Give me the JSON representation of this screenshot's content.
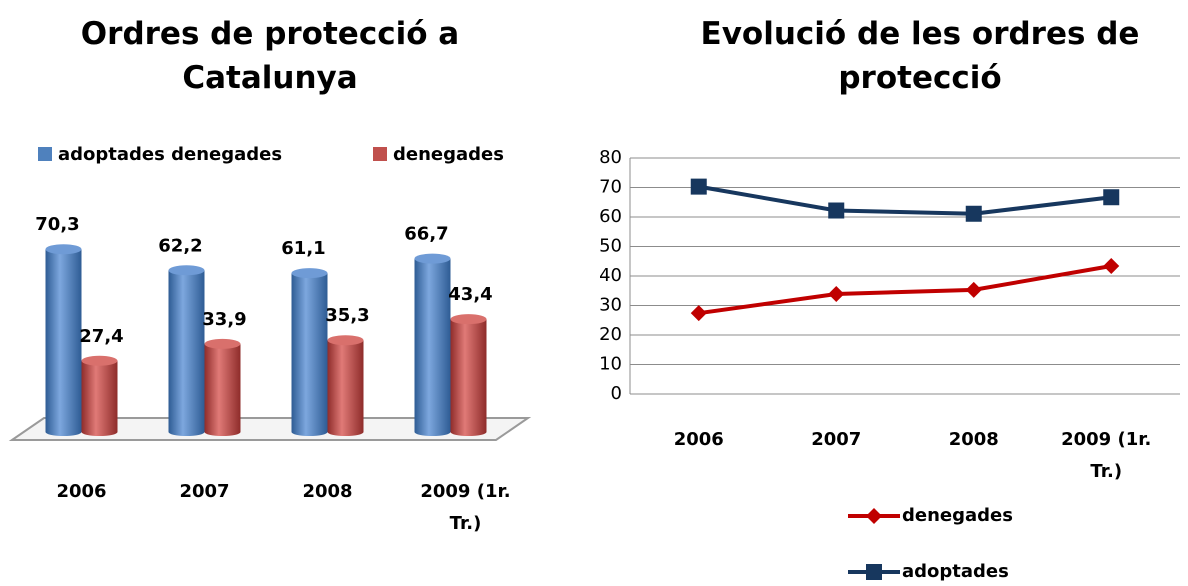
{
  "chart_data": [
    {
      "type": "bar",
      "title": "Ordres de protecció a Catalunya",
      "categories": [
        "2006",
        "2007",
        "2008",
        "2009 (1r. Tr.)"
      ],
      "series": [
        {
          "name": "adoptades denegades",
          "color": "#4f81bd",
          "values": [
            70.3,
            62.2,
            61.1,
            66.7
          ],
          "value_labels": [
            "70,3",
            "62,2",
            "61,1",
            "66,7"
          ]
        },
        {
          "name": "denegades",
          "color": "#c0504d",
          "values": [
            27.4,
            33.9,
            35.3,
            43.4
          ],
          "value_labels": [
            "27,4",
            "33,9",
            "35,3",
            "43,4"
          ]
        }
      ],
      "legend": "top"
    },
    {
      "type": "line",
      "title": "Evolució de les ordres de protecció",
      "categories": [
        "2006",
        "2007",
        "2008",
        "2009 (1r. Tr.)"
      ],
      "series": [
        {
          "name": "denegades",
          "color": "#c00000",
          "marker": "diamond",
          "values": [
            27.4,
            33.9,
            35.3,
            43.4
          ]
        },
        {
          "name": "adoptades",
          "color": "#17375e",
          "marker": "square",
          "values": [
            70.3,
            62.2,
            61.1,
            66.7
          ]
        }
      ],
      "ylim": [
        0,
        80
      ],
      "yticks": [
        0,
        10,
        20,
        30,
        40,
        50,
        60,
        70,
        80
      ],
      "grid": true,
      "legend": "bottom"
    }
  ]
}
